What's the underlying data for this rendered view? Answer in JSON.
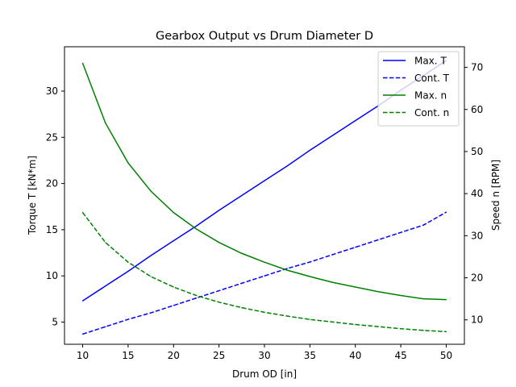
{
  "chart_data": {
    "type": "line",
    "title": "Gearbox Output vs Drum Diameter D",
    "xlabel": "Drum OD [in]",
    "ylabel": "Torque T [kN*m]",
    "y2label": "Speed n [RPM]",
    "xlim": [
      8,
      52
    ],
    "ylim": [
      2.6,
      34.8
    ],
    "y2lim": [
      4.2,
      74.9
    ],
    "xticks": [
      10,
      15,
      20,
      25,
      30,
      35,
      40,
      45,
      50
    ],
    "yticks": [
      5,
      10,
      15,
      20,
      25,
      30
    ],
    "y2ticks": [
      10,
      20,
      30,
      40,
      50,
      60,
      70
    ],
    "legend_position": "top-right",
    "grid": false,
    "x": [
      10,
      12.5,
      15,
      17.5,
      20,
      22.5,
      25,
      27.5,
      30,
      32.5,
      35,
      37.5,
      40,
      42.5,
      45,
      47.5,
      50
    ],
    "series": [
      {
        "name": "Max. T",
        "axis": "left",
        "color": "#0000ff",
        "dash": "solid",
        "values": [
          7.3,
          8.9,
          10.5,
          12.2,
          13.8,
          15.4,
          17.1,
          18.7,
          20.3,
          21.9,
          23.6,
          25.2,
          26.8,
          28.4,
          30.1,
          31.7,
          33.3
        ]
      },
      {
        "name": "Cont. T",
        "axis": "left",
        "color": "#0000ff",
        "dash": "dashed",
        "values": [
          3.7,
          4.5,
          5.3,
          6.0,
          6.8,
          7.6,
          8.4,
          9.2,
          10.0,
          10.8,
          11.5,
          12.3,
          13.1,
          13.9,
          14.7,
          15.5,
          16.9
        ]
      },
      {
        "name": "Max. n",
        "axis": "right",
        "color": "#008000",
        "dash": "solid",
        "values": [
          71.0,
          56.8,
          47.3,
          40.6,
          35.5,
          31.6,
          28.4,
          25.8,
          23.7,
          21.8,
          20.3,
          18.9,
          17.8,
          16.7,
          15.8,
          15.0,
          14.8
        ]
      },
      {
        "name": "Cont. n",
        "axis": "right",
        "color": "#008000",
        "dash": "dashed",
        "values": [
          35.5,
          28.4,
          23.7,
          20.3,
          17.8,
          15.8,
          14.2,
          12.9,
          11.8,
          10.9,
          10.1,
          9.5,
          8.9,
          8.4,
          7.9,
          7.5,
          7.2
        ]
      }
    ]
  }
}
